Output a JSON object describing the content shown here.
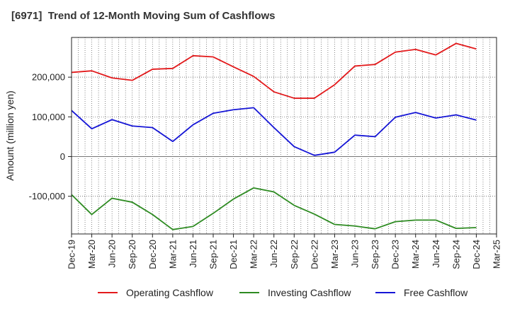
{
  "chart_data": {
    "type": "line",
    "title": "[6971]  Trend of 12-Month Moving Sum of Cashflows",
    "ylabel": "Amount (million yen)",
    "xlabel": "",
    "ylim": [
      -195000,
      300000
    ],
    "yticks": [
      -100000,
      0,
      100000,
      200000
    ],
    "ytick_labels": [
      "-100,000",
      "0",
      "100,000",
      "200,000"
    ],
    "categories": [
      "Dec-19",
      "Mar-20",
      "Jun-20",
      "Sep-20",
      "Dec-20",
      "Mar-21",
      "Jun-21",
      "Sep-21",
      "Dec-21",
      "Mar-22",
      "Jun-22",
      "Sep-22",
      "Dec-22",
      "Mar-23",
      "Jun-23",
      "Sep-23",
      "Dec-23",
      "Mar-24",
      "Jun-24",
      "Sep-24",
      "Dec-24",
      "Mar-25"
    ],
    "grid": true,
    "legend_position": "bottom",
    "series": [
      {
        "name": "Operating Cashflow",
        "color": "#e31a1c",
        "values": [
          212000,
          216000,
          198000,
          192000,
          220000,
          222000,
          254000,
          251000,
          226000,
          202000,
          163000,
          147000,
          147000,
          181000,
          228000,
          232000,
          263000,
          270000,
          256000,
          285000,
          271000,
          null
        ]
      },
      {
        "name": "Investing Cashflow",
        "color": "#2e8b22",
        "values": [
          -96000,
          -146000,
          -105000,
          -115000,
          -146000,
          -184000,
          -176000,
          -143000,
          -107000,
          -79000,
          -89000,
          -123000,
          -145000,
          -171000,
          -175000,
          -182000,
          -164000,
          -160000,
          -160000,
          -181000,
          -179000,
          null
        ]
      },
      {
        "name": "Free Cashflow",
        "color": "#1515d6",
        "values": [
          116000,
          70000,
          93000,
          77000,
          73000,
          38000,
          80000,
          109000,
          118000,
          123000,
          73000,
          25000,
          3000,
          11000,
          54000,
          50000,
          99000,
          111000,
          97000,
          105000,
          92000,
          null
        ]
      }
    ]
  }
}
